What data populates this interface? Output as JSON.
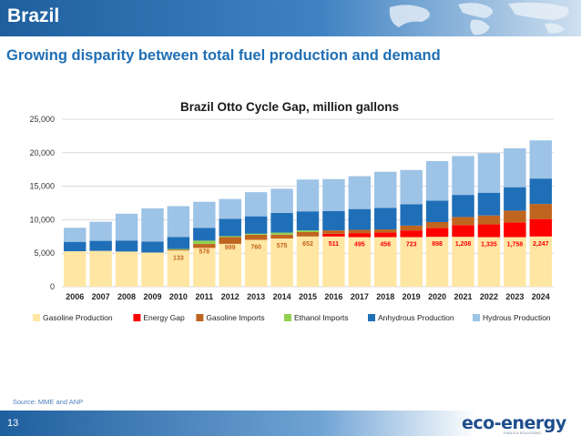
{
  "header": {
    "title": "Brazil"
  },
  "subtitle": "Growing disparity between total fuel production and demand",
  "footer": {
    "page_number": "13",
    "source": "Source: MME and ANP",
    "logo_text": "eco-energy",
    "logo_tagline": "FUELS & SOLUTIONS"
  },
  "colors": {
    "Gasoline Production": "#ffe6a3",
    "Energy Gap": "#ff0000",
    "Gasoline Imports": "#c0651f",
    "Ethanol Imports": "#92d050",
    "Anhydrous Production": "#1f6fb8",
    "Hydrous Production": "#9dc3e6"
  },
  "chart_data": {
    "type": "bar",
    "stacked": true,
    "title": "Brazil Otto Cycle Gap, million gallons",
    "categories": [
      "2006",
      "2007",
      "2008",
      "2009",
      "2010",
      "2011",
      "2012",
      "2013",
      "2014",
      "2015",
      "2016",
      "2017",
      "2018",
      "2019",
      "2020",
      "2021",
      "2022",
      "2023",
      "2024"
    ],
    "ylim": [
      0,
      25000
    ],
    "yticks": [
      0,
      5000,
      10000,
      15000,
      20000,
      25000
    ],
    "ytick_labels": [
      "0",
      "5,000",
      "10,000",
      "15,000",
      "20,000",
      "25,000"
    ],
    "grid": true,
    "legend_position": "bottom",
    "series": [
      {
        "name": "Gasoline Production",
        "values": [
          5300,
          5350,
          5250,
          5100,
          5400,
          5800,
          6400,
          7000,
          7200,
          7500,
          7500,
          7400,
          7400,
          7400,
          7450,
          7450,
          7400,
          7400,
          7500
        ]
      },
      {
        "name": "Energy Gap",
        "values": [
          0,
          0,
          0,
          0,
          0,
          0,
          0,
          0,
          0,
          0,
          400,
          600,
          700,
          1000,
          1300,
          1750,
          1900,
          2200,
          2600
        ]
      },
      {
        "name": "Gasoline Imports",
        "values": [
          0,
          0,
          0,
          0,
          133,
          578,
          999,
          760,
          575,
          652,
          511,
          495,
          456,
          723,
          898,
          1208,
          1335,
          1758,
          2247
        ]
      },
      {
        "name": "Ethanol Imports",
        "values": [
          0,
          0,
          0,
          0,
          100,
          500,
          150,
          150,
          300,
          250,
          0,
          0,
          0,
          0,
          0,
          0,
          0,
          0,
          0
        ]
      },
      {
        "name": "Anhydrous Production",
        "values": [
          1400,
          1500,
          1650,
          1650,
          1800,
          1900,
          2600,
          2600,
          2950,
          2850,
          2900,
          3100,
          3200,
          3200,
          3200,
          3300,
          3400,
          3500,
          3800
        ]
      },
      {
        "name": "Hydrous Production",
        "values": [
          2100,
          2850,
          4000,
          4950,
          4600,
          3900,
          2950,
          3600,
          3600,
          4750,
          4750,
          4900,
          5400,
          5100,
          5900,
          5800,
          5900,
          5800,
          5700
        ]
      }
    ],
    "data_labels": [
      "",
      "",
      "",
      "",
      "133",
      "578",
      "999",
      "760",
      "575",
      "652",
      "511",
      "495",
      "456",
      "723",
      "898",
      "1,208",
      "1,335",
      "1,758",
      "2,247"
    ],
    "data_label_colors": [
      "",
      "",
      "",
      "",
      "#c0651f",
      "#c0651f",
      "#c0651f",
      "#c0651f",
      "#c0651f",
      "#c0651f",
      "#ff0000",
      "#ff0000",
      "#ff0000",
      "#ff0000",
      "#ff0000",
      "#ff0000",
      "#ff0000",
      "#ff0000",
      "#ff0000"
    ]
  }
}
